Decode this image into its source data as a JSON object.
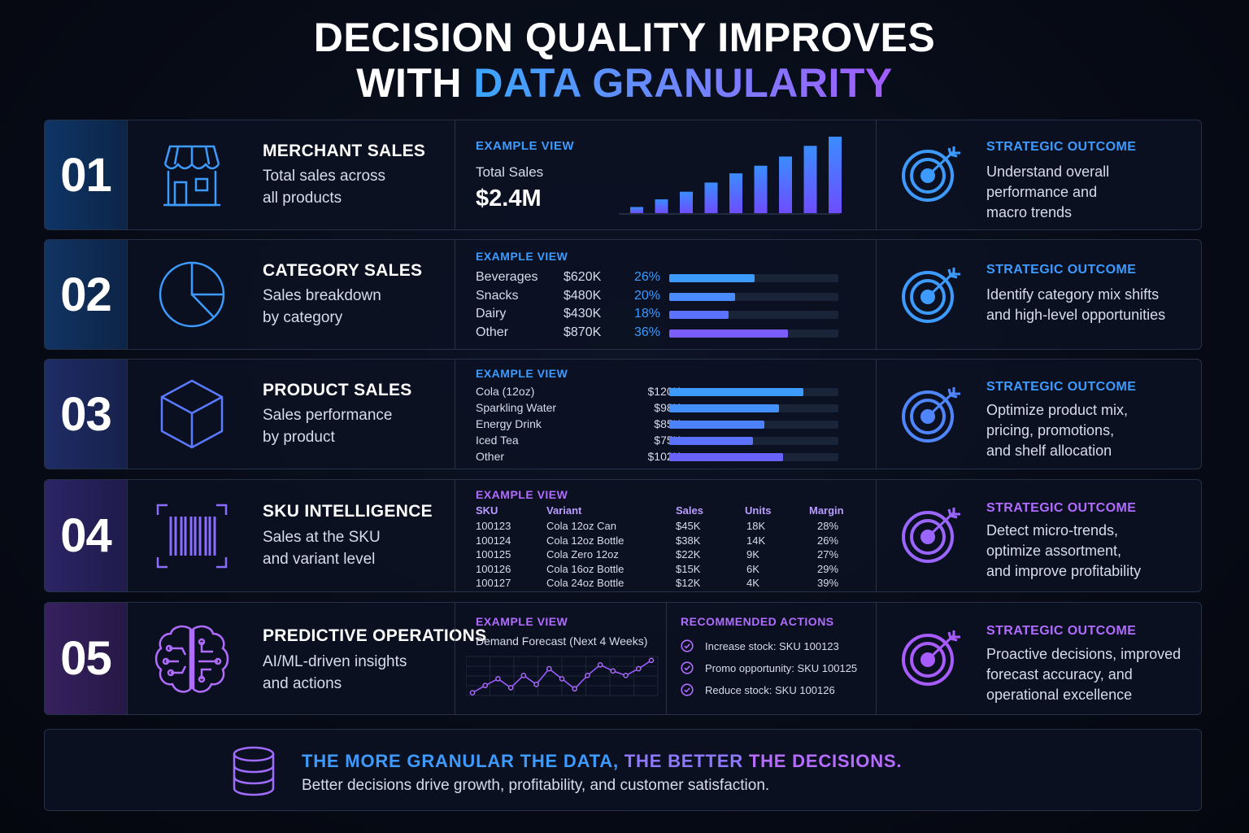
{
  "title": {
    "line1": "DECISION QUALITY IMPROVES",
    "line2_plain": "WITH",
    "line2_accent": "DATA GRANULARITY"
  },
  "colors": {
    "accent_blue": "#3d9bff",
    "accent_purple": "#a35cff",
    "background": "#070b16",
    "panel_border": "#263147"
  },
  "rows": [
    {
      "number": "01",
      "icon": "storefront-icon",
      "title": "MERCHANT SALES",
      "desc_line1": "Total sales across",
      "desc_line2": "all products",
      "example_label": "EXAMPLE VIEW",
      "metric_label": "Total Sales",
      "metric_value": "$2.4M",
      "outcome_label": "STRATEGIC OUTCOME",
      "outcome_lines": [
        "Understand overall",
        "performance and",
        "macro trends"
      ]
    },
    {
      "number": "02",
      "icon": "pie-chart-icon",
      "title": "CATEGORY SALES",
      "desc_line1": "Sales breakdown",
      "desc_line2": "by category",
      "example_label": "EXAMPLE VIEW",
      "outcome_label": "STRATEGIC OUTCOME",
      "outcome_lines": [
        "Identify category mix shifts",
        "and high-level opportunities"
      ]
    },
    {
      "number": "03",
      "icon": "cube-icon",
      "title": "PRODUCT SALES",
      "desc_line1": "Sales performance",
      "desc_line2": "by product",
      "example_label": "EXAMPLE VIEW",
      "outcome_label": "STRATEGIC OUTCOME",
      "outcome_lines": [
        "Optimize product mix,",
        "pricing, promotions,",
        "and shelf allocation"
      ]
    },
    {
      "number": "04",
      "icon": "barcode-icon",
      "title": "SKU INTELLIGENCE",
      "desc_line1": "Sales at the SKU",
      "desc_line2": "and variant level",
      "example_label": "EXAMPLE VIEW",
      "outcome_label": "STRATEGIC OUTCOME",
      "outcome_lines": [
        "Detect micro-trends,",
        "optimize assortment,",
        "and improve profitability"
      ]
    },
    {
      "number": "05",
      "icon": "brain-circuit-icon",
      "title": "PREDICTIVE OPERATIONS",
      "desc_line1": "AI/ML-driven insights",
      "desc_line2": "and actions",
      "example_label": "EXAMPLE VIEW",
      "forecast_label": "Demand Forecast (Next 4 Weeks)",
      "actions_label": "RECOMMENDED ACTIONS",
      "actions": [
        "Increase stock: SKU 100123",
        "Promo opportunity: SKU 100125",
        "Reduce stock: SKU 100126"
      ],
      "outcome_label": "STRATEGIC OUTCOME",
      "outcome_lines": [
        "Proactive decisions, improved",
        "forecast accuracy, and",
        "operational excellence"
      ]
    }
  ],
  "categories": [
    {
      "name": "Beverages",
      "value": "$620K",
      "pct": "26%",
      "share": 0.26
    },
    {
      "name": "Snacks",
      "value": "$480K",
      "pct": "20%",
      "share": 0.2
    },
    {
      "name": "Dairy",
      "value": "$430K",
      "pct": "18%",
      "share": 0.18
    },
    {
      "name": "Other",
      "value": "$870K",
      "pct": "36%",
      "share": 0.36
    }
  ],
  "products": [
    {
      "name": "Cola (12oz)",
      "value": "$120K",
      "amount": 120
    },
    {
      "name": "Sparkling Water",
      "value": "$98K",
      "amount": 98
    },
    {
      "name": "Energy Drink",
      "value": "$85K",
      "amount": 85
    },
    {
      "name": "Iced Tea",
      "value": "$75K",
      "amount": 75
    },
    {
      "name": "Other",
      "value": "$102K",
      "amount": 102
    }
  ],
  "sku_table": {
    "headers": [
      "SKU",
      "Variant",
      "Sales",
      "Units",
      "Margin"
    ],
    "rows": [
      [
        "100123",
        "Cola 12oz Can",
        "$45K",
        "18K",
        "28%"
      ],
      [
        "100124",
        "Cola 12oz Bottle",
        "$38K",
        "14K",
        "26%"
      ],
      [
        "100125",
        "Cola Zero 12oz",
        "$22K",
        "9K",
        "27%"
      ],
      [
        "100126",
        "Cola 16oz Bottle",
        "$15K",
        "6K",
        "29%"
      ],
      [
        "100127",
        "Cola 24oz Bottle",
        "$12K",
        "4K",
        "39%"
      ]
    ]
  },
  "chart_data": [
    {
      "type": "bar",
      "categories": [
        "1",
        "2",
        "3",
        "4",
        "5",
        "6",
        "7",
        "8",
        "9"
      ],
      "values": [
        8,
        18,
        28,
        40,
        52,
        62,
        74,
        88,
        100
      ],
      "title": "",
      "xlabel": "",
      "ylabel": "",
      "ylim": [
        0,
        100
      ]
    },
    {
      "type": "line",
      "x": [
        1,
        2,
        3,
        4,
        5,
        6,
        7,
        8,
        9,
        10,
        11,
        12,
        13,
        14,
        15
      ],
      "values": [
        5,
        18,
        30,
        14,
        36,
        20,
        48,
        30,
        12,
        36,
        55,
        44,
        36,
        48,
        63
      ],
      "title": "Demand Forecast (Next 4 Weeks)",
      "xlabel": "",
      "ylabel": "",
      "ylim": [
        0,
        70
      ]
    }
  ],
  "footer": {
    "head_a": "THE MORE GRANULAR THE DATA,",
    "head_b": "THE BETTER",
    "head_c": "THE DECISIONS.",
    "sub": "Better decisions drive growth, profitability, and customer satisfaction.",
    "icon": "database-icon"
  }
}
